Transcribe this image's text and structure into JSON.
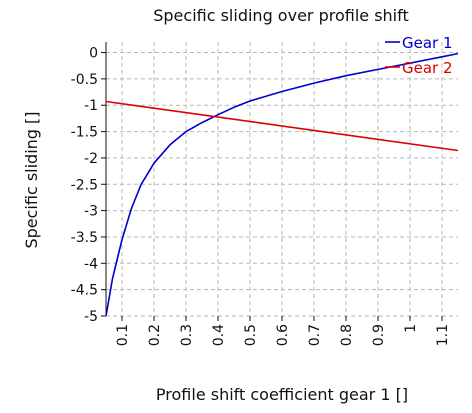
{
  "chart_data": {
    "type": "line",
    "title": "Specific sliding over profile shift",
    "xlabel": "Profile shift coefficient gear 1 []",
    "ylabel": "Specific sliding []",
    "xlim": [
      0.05,
      1.15
    ],
    "ylim": [
      -5,
      0.2
    ],
    "x_ticks": [
      0.1,
      0.2,
      0.3,
      0.4,
      0.5,
      0.6,
      0.7,
      0.8,
      0.9,
      1,
      1.1
    ],
    "x_tick_labels": [
      "0.1",
      "0.2",
      "0.3",
      "0.4",
      "0.5",
      "0.6",
      "0.7",
      "0.8",
      "0.9",
      "1",
      "1.1"
    ],
    "y_ticks": [
      0,
      -0.5,
      -1,
      -1.5,
      -2,
      -2.5,
      -3,
      -3.5,
      -4,
      -4.5,
      -5
    ],
    "y_tick_labels": [
      "0",
      "-0.5",
      "-1",
      "-1.5",
      "-2",
      "-2.5",
      "-3",
      "-3.5",
      "-4",
      "-4.5",
      "-5"
    ],
    "grid": true,
    "legend_position": "top-right",
    "series": [
      {
        "name": "Gear 1",
        "color": "#0000cc",
        "x": [
          0.05,
          0.07,
          0.1,
          0.13,
          0.16,
          0.2,
          0.25,
          0.3,
          0.35,
          0.4,
          0.45,
          0.5,
          0.6,
          0.7,
          0.8,
          0.9,
          1.0,
          1.1,
          1.15
        ],
        "y": [
          -5.0,
          -4.3,
          -3.55,
          -2.95,
          -2.5,
          -2.1,
          -1.75,
          -1.5,
          -1.33,
          -1.18,
          -1.04,
          -0.92,
          -0.74,
          -0.58,
          -0.44,
          -0.32,
          -0.2,
          -0.08,
          -0.02
        ]
      },
      {
        "name": "Gear 2",
        "color": "#dd0000",
        "x": [
          0.05,
          1.15
        ],
        "y": [
          -0.93,
          -1.86
        ]
      }
    ]
  }
}
